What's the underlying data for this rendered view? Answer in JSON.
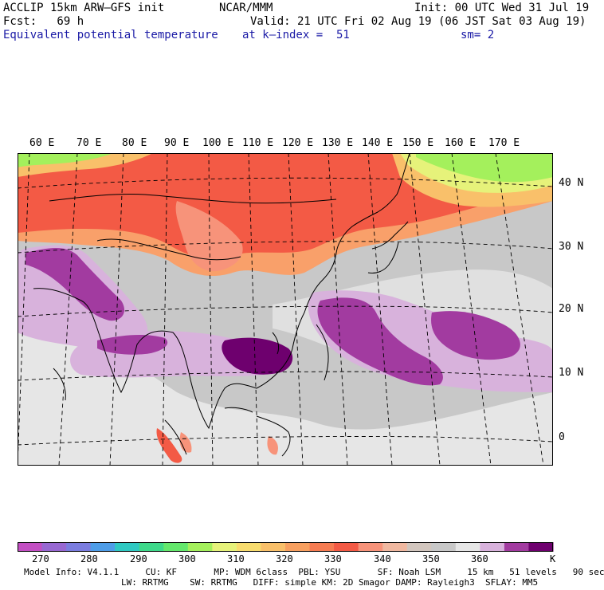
{
  "header": {
    "model": "ACCLIP 15km ARW–GFS init",
    "org": "NCAR/MMM",
    "init": "Init: 00 UTC Wed 31 Jul 19",
    "fcst": "Fcst:   69 h",
    "valid": "Valid: 21 UTC Fri 02 Aug 19 (06 JST Sat 03 Aug 19)",
    "field": "Equivalent potential temperature",
    "level": "at k–index =  51",
    "smooth": "sm= 2"
  },
  "map": {
    "lon_labels": [
      "60 E",
      "70 E",
      "80 E",
      "90 E",
      "100 E",
      "110 E",
      "120 E",
      "130 E",
      "140 E",
      "150 E",
      "160 E",
      "170 E"
    ],
    "lat_labels": [
      "40 N",
      "30 N",
      "20 N",
      "10 N",
      "0"
    ]
  },
  "colorbar": {
    "unit": "K",
    "labels": [
      "270",
      "280",
      "290",
      "300",
      "310",
      "320",
      "330",
      "340",
      "350",
      "360"
    ],
    "colors": [
      "#c34fc3",
      "#9868d2",
      "#7b7de0",
      "#4e9de8",
      "#2fc9c2",
      "#3ed98a",
      "#64e86c",
      "#a4f05c",
      "#e6f27a",
      "#f8dc6e",
      "#f9c06a",
      "#f8a060",
      "#f67c52",
      "#f35a45",
      "#f7937a",
      "#f0b8a0",
      "#d2c6be",
      "#c8c8c8",
      "#e6e6e6",
      "#d8b2dc",
      "#a23ba0",
      "#6e006e"
    ]
  },
  "model_info": {
    "line1": "Model Info: V4.1.1     CU: KF       MP: WDM 6class  PBL: YSU       SF: Noah LSM     15 km   51 levels   90 sec",
    "line2": "LW: RRTMG    SW: RRTMG   DIFF: simple KM: 2D Smagor DAMP: Rayleigh3  SFLAY: MM5"
  }
}
